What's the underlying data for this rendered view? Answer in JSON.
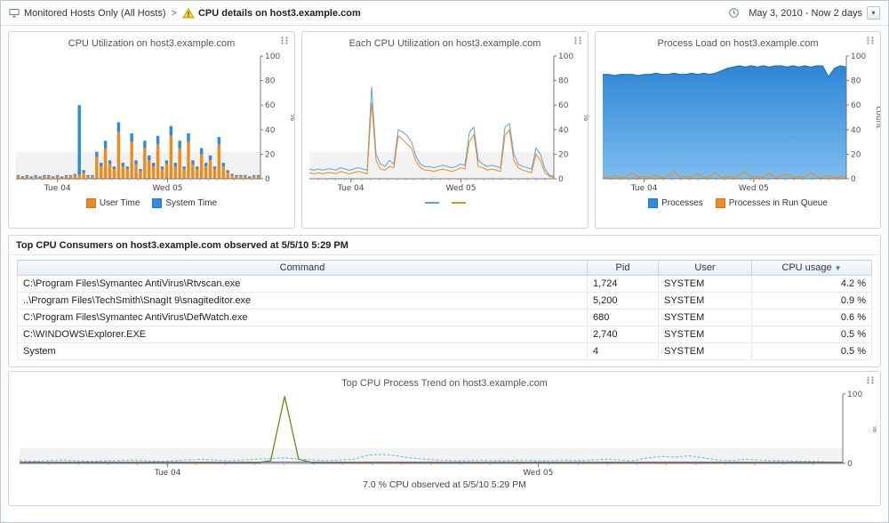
{
  "header": {
    "breadcrumb": "Monitored Hosts Only (All Hosts)",
    "separator": ">",
    "page_title": "CPU details on host3.example.com",
    "time_range": "May 3, 2010 - Now 2 days"
  },
  "icons": {
    "sort_desc": "▼",
    "dropdown_arrow": "▾"
  },
  "table": {
    "title": "Top CPU Consumers on host3.example.com observed at 5/5/10 5:29 PM",
    "columns": [
      "Command",
      "Pid",
      "User",
      "CPU usage"
    ],
    "rows": [
      {
        "command": "C:\\Program Files\\Symantec AntiVirus\\Rtvscan.exe",
        "pid": "1,724",
        "user": "SYSTEM",
        "cpu": "4.2 %"
      },
      {
        "command": "..\\Program Files\\TechSmith\\SnagIt 9\\snagiteditor.exe",
        "pid": "5,200",
        "user": "SYSTEM",
        "cpu": "0.9 %"
      },
      {
        "command": "C:\\Program Files\\Symantec AntiVirus\\DefWatch.exe",
        "pid": "680",
        "user": "SYSTEM",
        "cpu": "0.6 %"
      },
      {
        "command": "C:\\WINDOWS\\Explorer.EXE",
        "pid": "2,740",
        "user": "SYSTEM",
        "cpu": "0.5 %"
      },
      {
        "command": "System",
        "pid": "4",
        "user": "SYSTEM",
        "cpu": "0.5 %"
      }
    ]
  },
  "chart_data": [
    {
      "type": "bar",
      "title": "CPU Utilization on host3.example.com",
      "ylabel": "%",
      "ylim": [
        0,
        100
      ],
      "yticks": [
        0,
        20,
        40,
        60,
        80,
        100
      ],
      "xticks": [
        {
          "label": "Tue 04",
          "pos": 0.17
        },
        {
          "label": "Wed 05",
          "pos": 0.62
        }
      ],
      "series": [
        {
          "name": "User Time",
          "color": "#ee8b1f",
          "values": [
            2,
            1,
            2,
            1,
            2,
            1,
            2,
            2,
            1,
            2,
            1,
            2,
            2,
            3,
            3,
            5,
            2,
            2,
            18,
            10,
            25,
            12,
            8,
            38,
            10,
            8,
            30,
            12,
            6,
            25,
            15,
            10,
            28,
            8,
            12,
            35,
            10,
            25,
            8,
            30,
            12,
            8,
            20,
            10,
            15,
            8,
            28,
            10,
            5,
            3,
            2,
            2,
            2,
            1,
            2,
            2
          ]
        },
        {
          "name": "System Time",
          "color": "#2d8ce2",
          "values": [
            1,
            1,
            1,
            1,
            1,
            1,
            1,
            1,
            1,
            1,
            1,
            1,
            1,
            1,
            57,
            2,
            1,
            1,
            4,
            3,
            6,
            3,
            2,
            8,
            3,
            2,
            7,
            3,
            2,
            6,
            4,
            3,
            7,
            2,
            3,
            8,
            3,
            6,
            2,
            7,
            3,
            2,
            5,
            3,
            4,
            2,
            6,
            3,
            2,
            1,
            1,
            1,
            1,
            1,
            1,
            1
          ]
        }
      ]
    },
    {
      "type": "line",
      "title": "Each CPU Utilization on host3.example.com",
      "ylabel": "%",
      "ylim": [
        0,
        100
      ],
      "yticks": [
        0,
        20,
        40,
        60,
        80,
        100
      ],
      "xticks": [
        {
          "label": "Tue 04",
          "pos": 0.17
        },
        {
          "label": "Wed 05",
          "pos": 0.62
        }
      ],
      "series": [
        {
          "name": "",
          "color": "#5aa2dc",
          "values": [
            8,
            7,
            8,
            7,
            8,
            8,
            7,
            9,
            8,
            7,
            8,
            9,
            8,
            7,
            75,
            20,
            12,
            10,
            15,
            12,
            40,
            38,
            35,
            30,
            18,
            12,
            10,
            10,
            9,
            10,
            11,
            10,
            9,
            10,
            12,
            11,
            38,
            42,
            15,
            12,
            10,
            11,
            10,
            9,
            42,
            45,
            20,
            12,
            10,
            9,
            8,
            25,
            20,
            8,
            3,
            2
          ]
        },
        {
          "name": "",
          "color": "#ee8b1f",
          "values": [
            5,
            4,
            5,
            4,
            5,
            5,
            4,
            6,
            5,
            4,
            5,
            6,
            5,
            4,
            62,
            15,
            8,
            7,
            10,
            9,
            35,
            32,
            28,
            25,
            14,
            9,
            7,
            7,
            6,
            7,
            8,
            7,
            6,
            7,
            9,
            8,
            30,
            36,
            10,
            9,
            7,
            8,
            7,
            6,
            35,
            40,
            15,
            9,
            7,
            6,
            5,
            20,
            15,
            5,
            2,
            1
          ]
        }
      ]
    },
    {
      "type": "area",
      "title": "Process Load on host3.example.com",
      "ylabel": "count",
      "ylim": [
        0,
        100
      ],
      "yticks": [
        0,
        20,
        40,
        60,
        80,
        100
      ],
      "xticks": [
        {
          "label": "Tue 04",
          "pos": 0.17
        },
        {
          "label": "Wed 05",
          "pos": 0.62
        }
      ],
      "series": [
        {
          "name": "Processes",
          "color": "#2d8ce2",
          "values": [
            85,
            85,
            84,
            85,
            85,
            85,
            84,
            85,
            85,
            86,
            85,
            85,
            86,
            85,
            85,
            86,
            85,
            86,
            85,
            86,
            88,
            90,
            91,
            92,
            91,
            92,
            91,
            92,
            91,
            92,
            92,
            91,
            92,
            91,
            92,
            91,
            92,
            92,
            83,
            90,
            92,
            91
          ]
        },
        {
          "name": "Processes in Run Queue",
          "color": "#ee8b1f",
          "values": [
            2,
            1,
            3,
            1,
            2,
            5,
            1,
            2,
            1,
            3,
            1,
            2,
            6,
            1,
            2,
            1,
            4,
            1,
            2,
            5,
            1,
            2,
            1,
            3,
            6,
            1,
            2,
            1,
            5,
            1,
            2,
            4,
            1,
            2,
            1,
            5,
            2,
            1,
            3,
            1,
            2,
            1
          ]
        }
      ]
    },
    {
      "type": "line",
      "title": "Top CPU Process Trend on host3.example.com",
      "ylabel": "%",
      "ylim": [
        0,
        100
      ],
      "yticks": [
        0,
        100
      ],
      "xticks": [
        {
          "label": "Tue 04",
          "pos": 0.18
        },
        {
          "label": "Wed 05",
          "pos": 0.63
        }
      ],
      "caption": "7.0 % CPU observed at 5/5/10 5:29 PM",
      "series": [
        {
          "name": "",
          "color": "#76841e",
          "width": 1.3,
          "values": [
            1,
            1,
            1,
            1,
            1,
            1,
            1,
            1,
            1,
            1,
            1,
            1,
            1,
            1,
            1,
            1,
            1,
            1,
            4,
            97,
            6,
            1,
            1,
            1,
            1,
            1,
            1,
            1,
            1,
            1,
            1,
            1,
            1,
            1,
            1,
            1,
            1,
            1,
            1,
            1,
            1,
            1,
            1,
            1,
            1,
            1,
            1,
            1,
            1,
            1,
            1,
            1,
            1,
            1,
            1,
            1,
            1,
            1,
            1,
            1
          ]
        },
        {
          "name": "",
          "color": "#5bc0d8",
          "dash": true,
          "values": [
            4,
            3,
            4,
            5,
            4,
            3,
            4,
            4,
            5,
            4,
            3,
            4,
            5,
            6,
            5,
            4,
            5,
            6,
            7,
            8,
            6,
            5,
            4,
            5,
            6,
            12,
            13,
            11,
            8,
            6,
            5,
            4,
            4,
            5,
            4,
            4,
            5,
            4,
            4,
            5,
            4,
            5,
            6,
            5,
            4,
            8,
            10,
            9,
            11,
            8,
            5,
            4,
            6,
            5,
            4,
            4,
            3,
            3,
            2,
            2
          ]
        },
        {
          "name": "",
          "color": "#7e5fa0",
          "values": [
            2,
            2,
            2,
            2,
            2,
            2,
            2,
            2,
            2,
            2,
            2,
            2,
            2,
            2,
            2,
            2,
            2,
            2,
            2,
            2,
            2,
            2,
            2,
            2,
            2,
            2,
            2,
            2,
            2,
            2,
            2,
            2,
            2,
            2,
            2,
            2,
            2,
            2,
            2,
            2,
            2,
            2,
            2,
            2,
            2,
            2,
            2,
            2,
            2,
            2,
            2,
            2,
            2,
            2,
            2,
            2,
            2,
            2,
            2,
            2
          ]
        }
      ]
    }
  ]
}
